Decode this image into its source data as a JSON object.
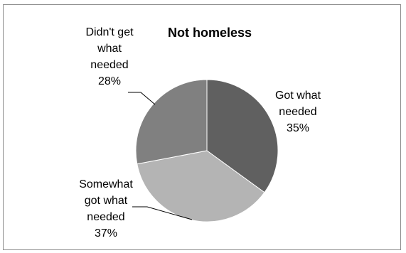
{
  "chart_data": {
    "type": "pie",
    "title": "Not homeless",
    "slices": [
      {
        "label_lines": [
          "Got what",
          "needed"
        ],
        "value_label": "35%",
        "value": 35,
        "color": "#606060"
      },
      {
        "label_lines": [
          "Somewhat",
          "got what",
          "needed"
        ],
        "value_label": "37%",
        "value": 37,
        "color": "#b4b4b4"
      },
      {
        "label_lines": [
          "Didn't get",
          "what",
          "needed"
        ],
        "value_label": "28%",
        "value": 28,
        "color": "#808080"
      }
    ],
    "start": "12 o'clock",
    "direction": "clockwise",
    "legend": "none"
  }
}
